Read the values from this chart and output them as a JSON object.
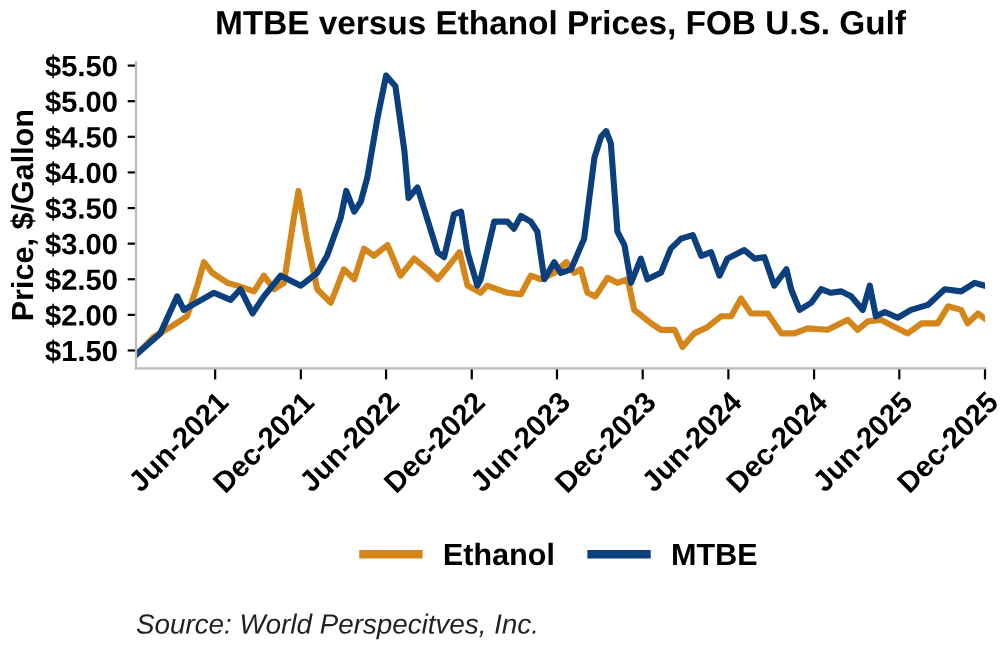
{
  "chart_data": {
    "type": "line",
    "title": "MTBE versus Ethanol Prices, FOB U.S. Gulf",
    "ylabel": "Price, $/Gallon",
    "xlim": [
      "2020-12-14",
      "2025-12-01"
    ],
    "ylim": [
      1.25,
      5.55
    ],
    "xticks": [
      {
        "value": "2021-06-01",
        "label": "Jun-2021"
      },
      {
        "value": "2021-12-01",
        "label": "Dec-2021"
      },
      {
        "value": "2022-06-01",
        "label": "Jun-2022"
      },
      {
        "value": "2022-12-01",
        "label": "Dec-2022"
      },
      {
        "value": "2023-06-01",
        "label": "Jun-2023"
      },
      {
        "value": "2023-12-01",
        "label": "Dec-2023"
      },
      {
        "value": "2024-06-01",
        "label": "Jun-2024"
      },
      {
        "value": "2024-12-01",
        "label": "Dec-2024"
      },
      {
        "value": "2025-06-01",
        "label": "Jun-2025"
      },
      {
        "value": "2025-12-01",
        "label": "Dec-2025"
      }
    ],
    "yticks": [
      {
        "value": 1.5,
        "label": "$1.50"
      },
      {
        "value": 2.0,
        "label": "$2.00"
      },
      {
        "value": 2.5,
        "label": "$2.50"
      },
      {
        "value": 3.0,
        "label": "$3.00"
      },
      {
        "value": 3.5,
        "label": "$3.50"
      },
      {
        "value": 4.0,
        "label": "$4.00"
      },
      {
        "value": 4.5,
        "label": "$4.50"
      },
      {
        "value": 5.0,
        "label": "$5.00"
      },
      {
        "value": 5.5,
        "label": "$5.50"
      }
    ],
    "grid": false,
    "legend": "bottom",
    "marker": "none",
    "line_style": "solid",
    "annotations": [
      "Source: World Perspecitves, Inc."
    ],
    "series": [
      {
        "name": "Ethanol",
        "color": "#d4861a",
        "x": [
          "2020-12-16",
          "2021-01-21",
          "2021-02-26",
          "2021-04-02",
          "2021-04-24",
          "2021-05-08",
          "2021-05-26",
          "2021-06-27",
          "2021-07-18",
          "2021-08-23",
          "2021-09-13",
          "2021-10-05",
          "2021-10-26",
          "2021-11-16",
          "2021-11-26",
          "2021-12-15",
          "2022-01-05",
          "2022-02-03",
          "2022-03-03",
          "2022-03-25",
          "2022-04-15",
          "2022-05-06",
          "2022-06-04",
          "2022-07-02",
          "2022-07-31",
          "2022-08-28",
          "2022-09-19",
          "2022-10-07",
          "2022-11-05",
          "2022-11-22",
          "2022-12-20",
          "2023-01-03",
          "2023-02-15",
          "2023-03-16",
          "2023-04-06",
          "2023-04-28",
          "2023-05-26",
          "2023-06-21",
          "2023-07-08",
          "2023-07-22",
          "2023-08-05",
          "2023-08-22",
          "2023-09-17",
          "2023-10-08",
          "2023-10-30",
          "2023-11-13",
          "2023-12-19",
          "2024-01-09",
          "2024-02-07",
          "2024-02-24",
          "2024-03-20",
          "2024-04-18",
          "2024-05-16",
          "2024-06-07",
          "2024-06-28",
          "2024-07-19",
          "2024-08-24",
          "2024-09-22",
          "2024-10-20",
          "2024-11-17",
          "2024-12-30",
          "2025-02-11",
          "2025-03-04",
          "2025-03-26",
          "2025-04-23",
          "2025-05-22",
          "2025-06-19",
          "2025-07-18",
          "2025-08-22",
          "2025-09-13",
          "2025-10-11",
          "2025-10-25",
          "2025-11-16",
          "2025-11-30"
        ],
        "values": [
          1.45,
          1.69,
          1.83,
          1.98,
          2.41,
          2.74,
          2.59,
          2.45,
          2.41,
          2.33,
          2.55,
          2.36,
          2.45,
          3.36,
          3.74,
          3.02,
          2.36,
          2.17,
          2.64,
          2.5,
          2.93,
          2.83,
          2.98,
          2.55,
          2.79,
          2.64,
          2.5,
          2.64,
          2.88,
          2.41,
          2.31,
          2.41,
          2.31,
          2.29,
          2.55,
          2.5,
          2.59,
          2.74,
          2.59,
          2.64,
          2.31,
          2.26,
          2.52,
          2.45,
          2.5,
          2.07,
          1.88,
          1.79,
          1.79,
          1.55,
          1.74,
          1.83,
          1.98,
          1.98,
          2.23,
          2.02,
          2.02,
          1.74,
          1.74,
          1.81,
          1.79,
          1.93,
          1.79,
          1.91,
          1.93,
          1.83,
          1.74,
          1.88,
          1.88,
          2.12,
          2.07,
          1.88,
          2.02,
          1.95
        ]
      },
      {
        "name": "MTBE",
        "color": "#0b3f7e",
        "x": [
          "2020-12-16",
          "2021-02-04",
          "2021-03-12",
          "2021-03-26",
          "2021-05-29",
          "2021-07-04",
          "2021-07-25",
          "2021-08-20",
          "2021-09-13",
          "2021-10-19",
          "2021-12-01",
          "2022-01-05",
          "2022-01-26",
          "2022-02-24",
          "2022-03-08",
          "2022-03-25",
          "2022-04-08",
          "2022-04-22",
          "2022-05-13",
          "2022-06-01",
          "2022-06-21",
          "2022-07-10",
          "2022-07-19",
          "2022-08-07",
          "2022-09-19",
          "2022-10-03",
          "2022-10-24",
          "2022-11-08",
          "2022-11-22",
          "2022-12-13",
          "2022-12-20",
          "2023-01-18",
          "2023-02-15",
          "2023-03-01",
          "2023-03-16",
          "2023-04-06",
          "2023-04-20",
          "2023-05-05",
          "2023-05-26",
          "2023-06-09",
          "2023-07-01",
          "2023-07-29",
          "2023-08-20",
          "2023-09-03",
          "2023-09-14",
          "2023-09-24",
          "2023-10-08",
          "2023-10-23",
          "2023-11-06",
          "2023-11-27",
          "2023-12-11",
          "2024-01-09",
          "2024-01-30",
          "2024-02-21",
          "2024-03-17",
          "2024-04-04",
          "2024-04-25",
          "2024-05-13",
          "2024-05-30",
          "2024-07-05",
          "2024-07-27",
          "2024-08-17",
          "2024-09-07",
          "2024-10-03",
          "2024-10-13",
          "2024-10-31",
          "2024-11-25",
          "2024-12-16",
          "2025-01-06",
          "2025-01-28",
          "2025-02-18",
          "2025-03-15",
          "2025-03-30",
          "2025-04-12",
          "2025-05-01",
          "2025-05-29",
          "2025-06-26",
          "2025-08-01",
          "2025-09-06",
          "2025-10-11",
          "2025-11-09",
          "2025-11-30"
        ],
        "values": [
          1.45,
          1.74,
          2.26,
          2.07,
          2.31,
          2.21,
          2.36,
          2.02,
          2.26,
          2.55,
          2.41,
          2.59,
          2.83,
          3.36,
          3.74,
          3.45,
          3.59,
          3.93,
          4.74,
          5.36,
          5.21,
          4.31,
          3.64,
          3.79,
          2.88,
          2.81,
          3.41,
          3.45,
          2.88,
          2.41,
          2.5,
          3.31,
          3.31,
          3.21,
          3.39,
          3.31,
          3.17,
          2.5,
          2.74,
          2.59,
          2.64,
          3.07,
          4.21,
          4.5,
          4.58,
          4.41,
          3.17,
          2.98,
          2.45,
          2.79,
          2.5,
          2.59,
          2.93,
          3.07,
          3.12,
          2.83,
          2.88,
          2.55,
          2.79,
          2.91,
          2.79,
          2.81,
          2.41,
          2.64,
          2.36,
          2.07,
          2.17,
          2.36,
          2.31,
          2.33,
          2.26,
          2.07,
          2.41,
          1.98,
          2.04,
          1.96,
          2.07,
          2.14,
          2.36,
          2.33,
          2.45,
          2.41
        ]
      }
    ]
  }
}
